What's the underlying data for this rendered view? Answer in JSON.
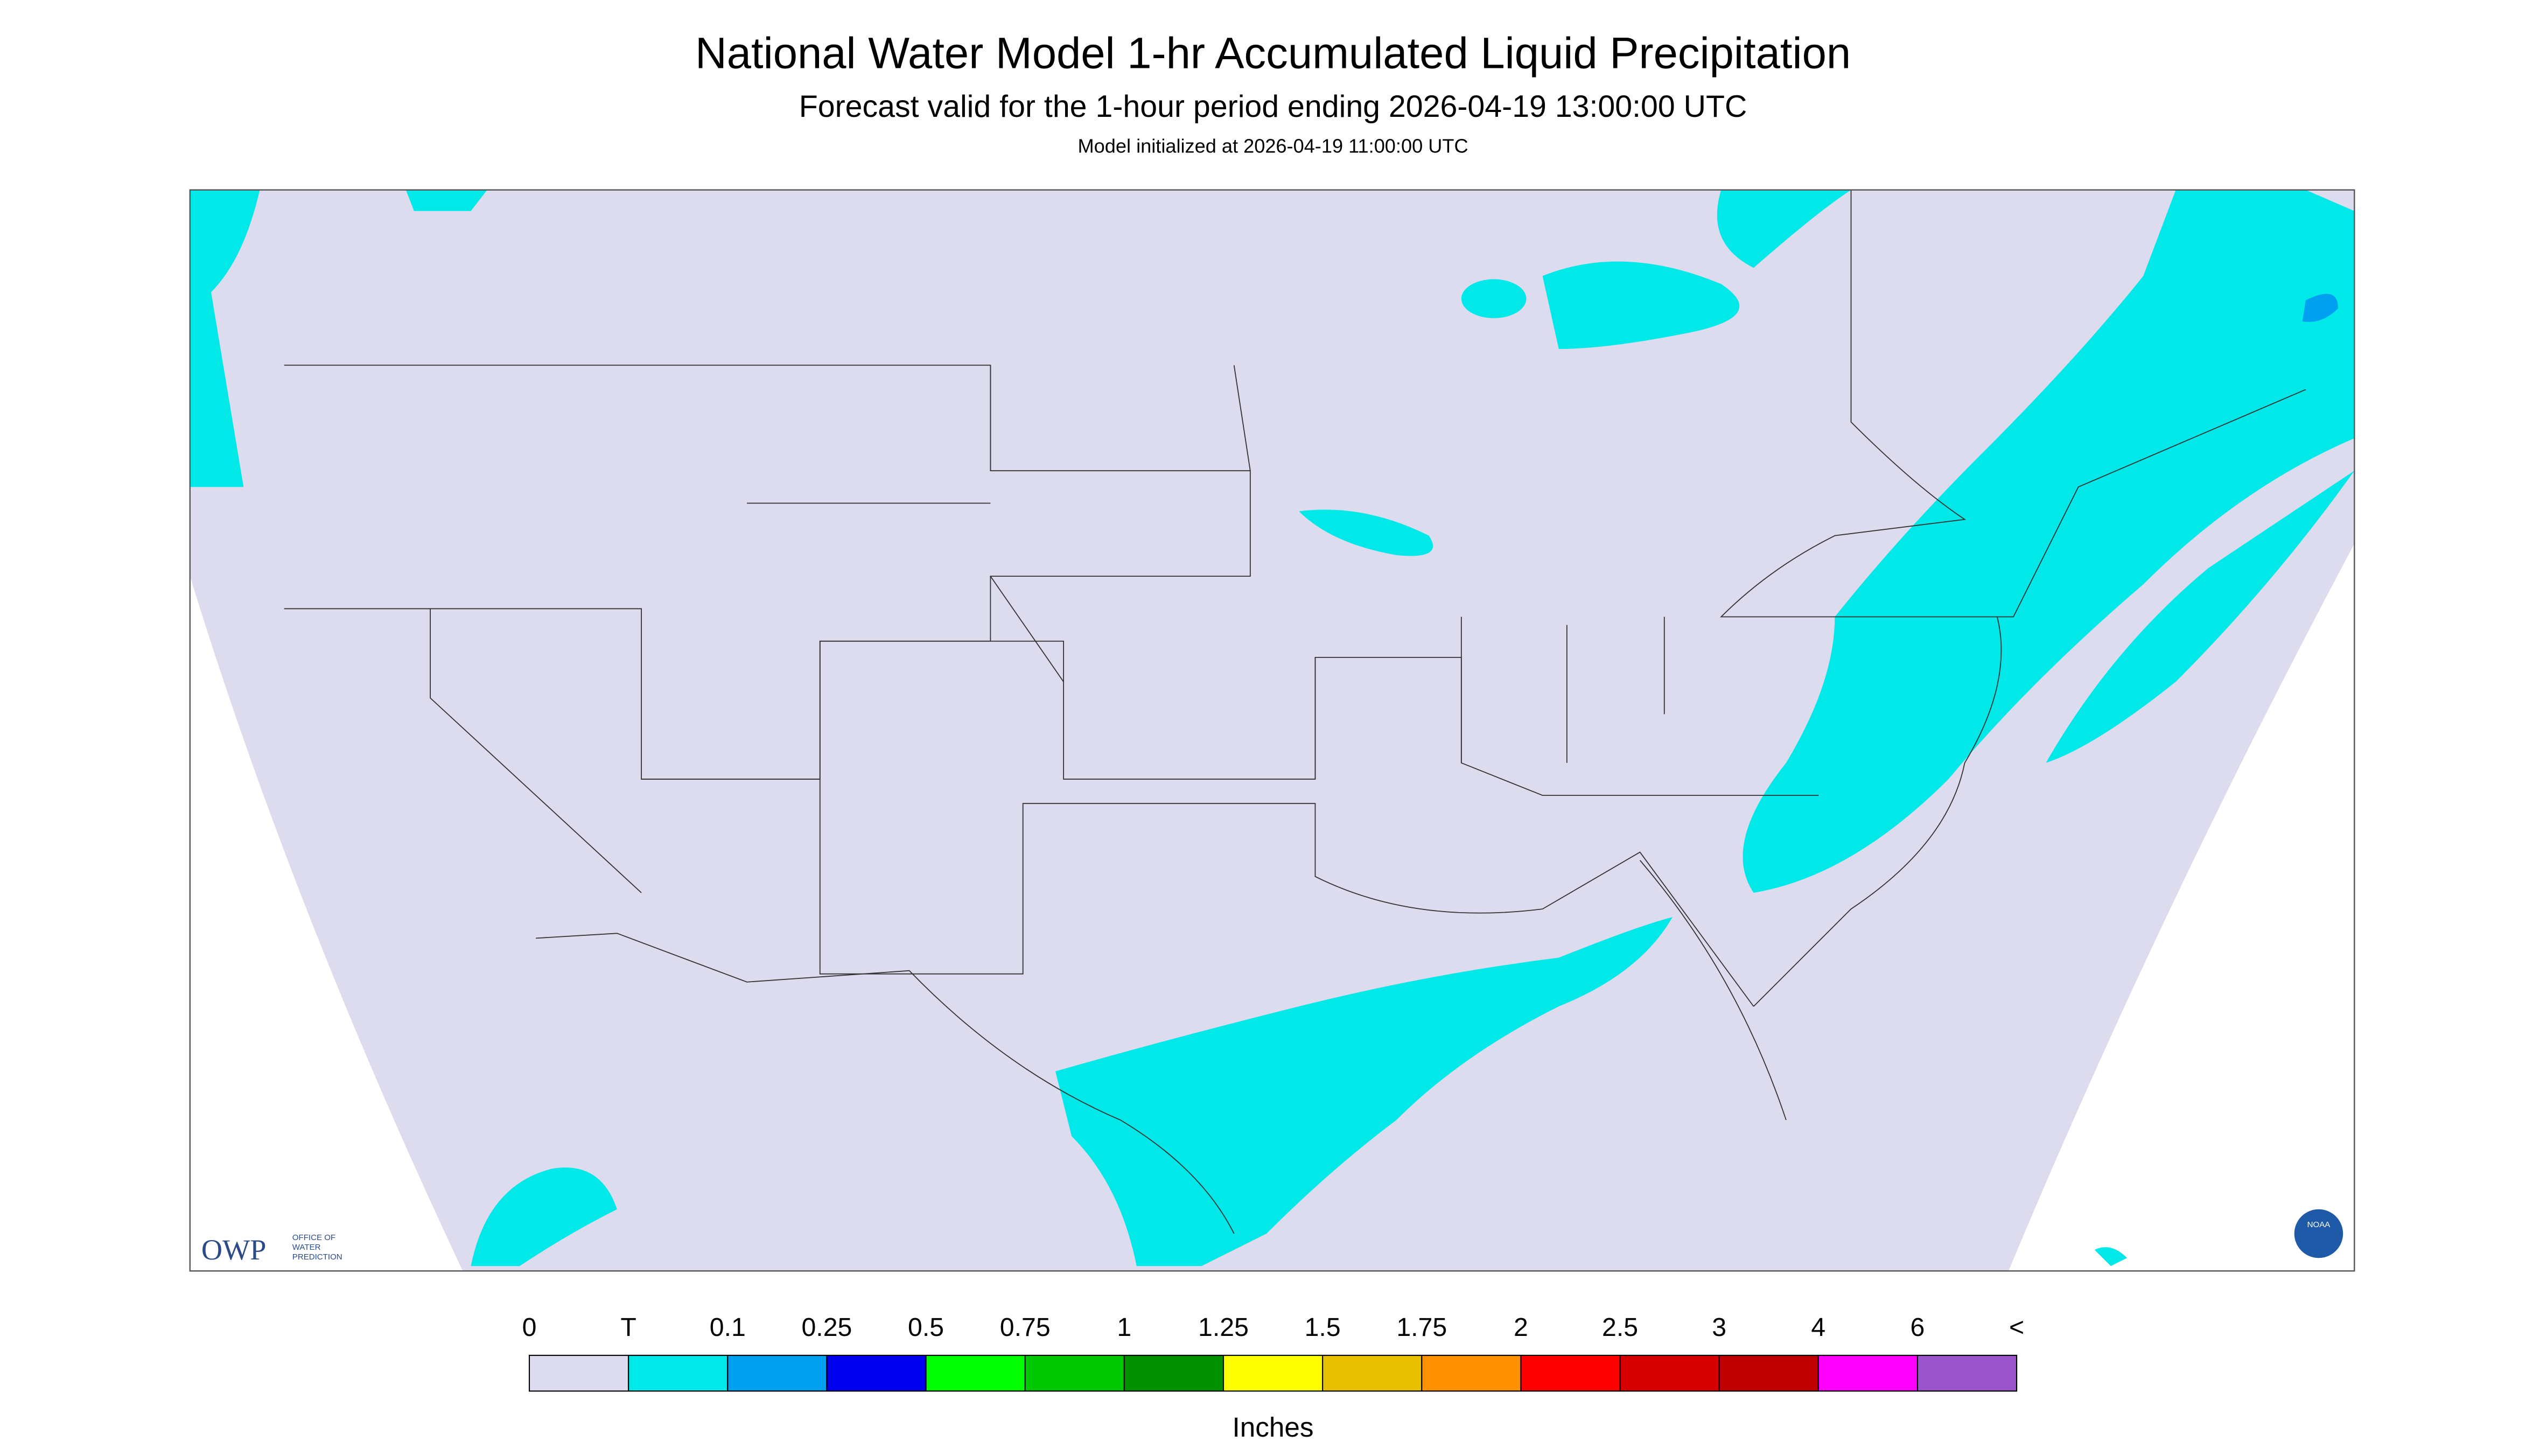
{
  "header": {
    "title": "National Water Model 1-hr Accumulated Liquid Precipitation",
    "subtitle": "Forecast valid for the 1-hour period ending 2026-04-19 13:00:00 UTC",
    "init": "Model initialized at 2026-04-19 11:00:00 UTC"
  },
  "logos": {
    "owp": "OWP",
    "owp_full": [
      "OFFICE OF",
      "WATER",
      "PREDICTION"
    ],
    "noaa": "NOAA"
  },
  "legend": {
    "labels": [
      "0",
      "T",
      "0.1",
      "0.25",
      "0.5",
      "0.75",
      "1",
      "1.25",
      "1.5",
      "1.75",
      "2",
      "2.5",
      "3",
      "4",
      "6",
      "<"
    ],
    "colors": [
      "#dcdcee",
      "#00e8e8",
      "#00a0f0",
      "#0000f0",
      "#00ff00",
      "#00c800",
      "#009000",
      "#ffff00",
      "#e7c000",
      "#ff9000",
      "#ff0000",
      "#d60000",
      "#c00000",
      "#ff00ff",
      "#9955c9"
    ],
    "units": "Inches"
  }
}
